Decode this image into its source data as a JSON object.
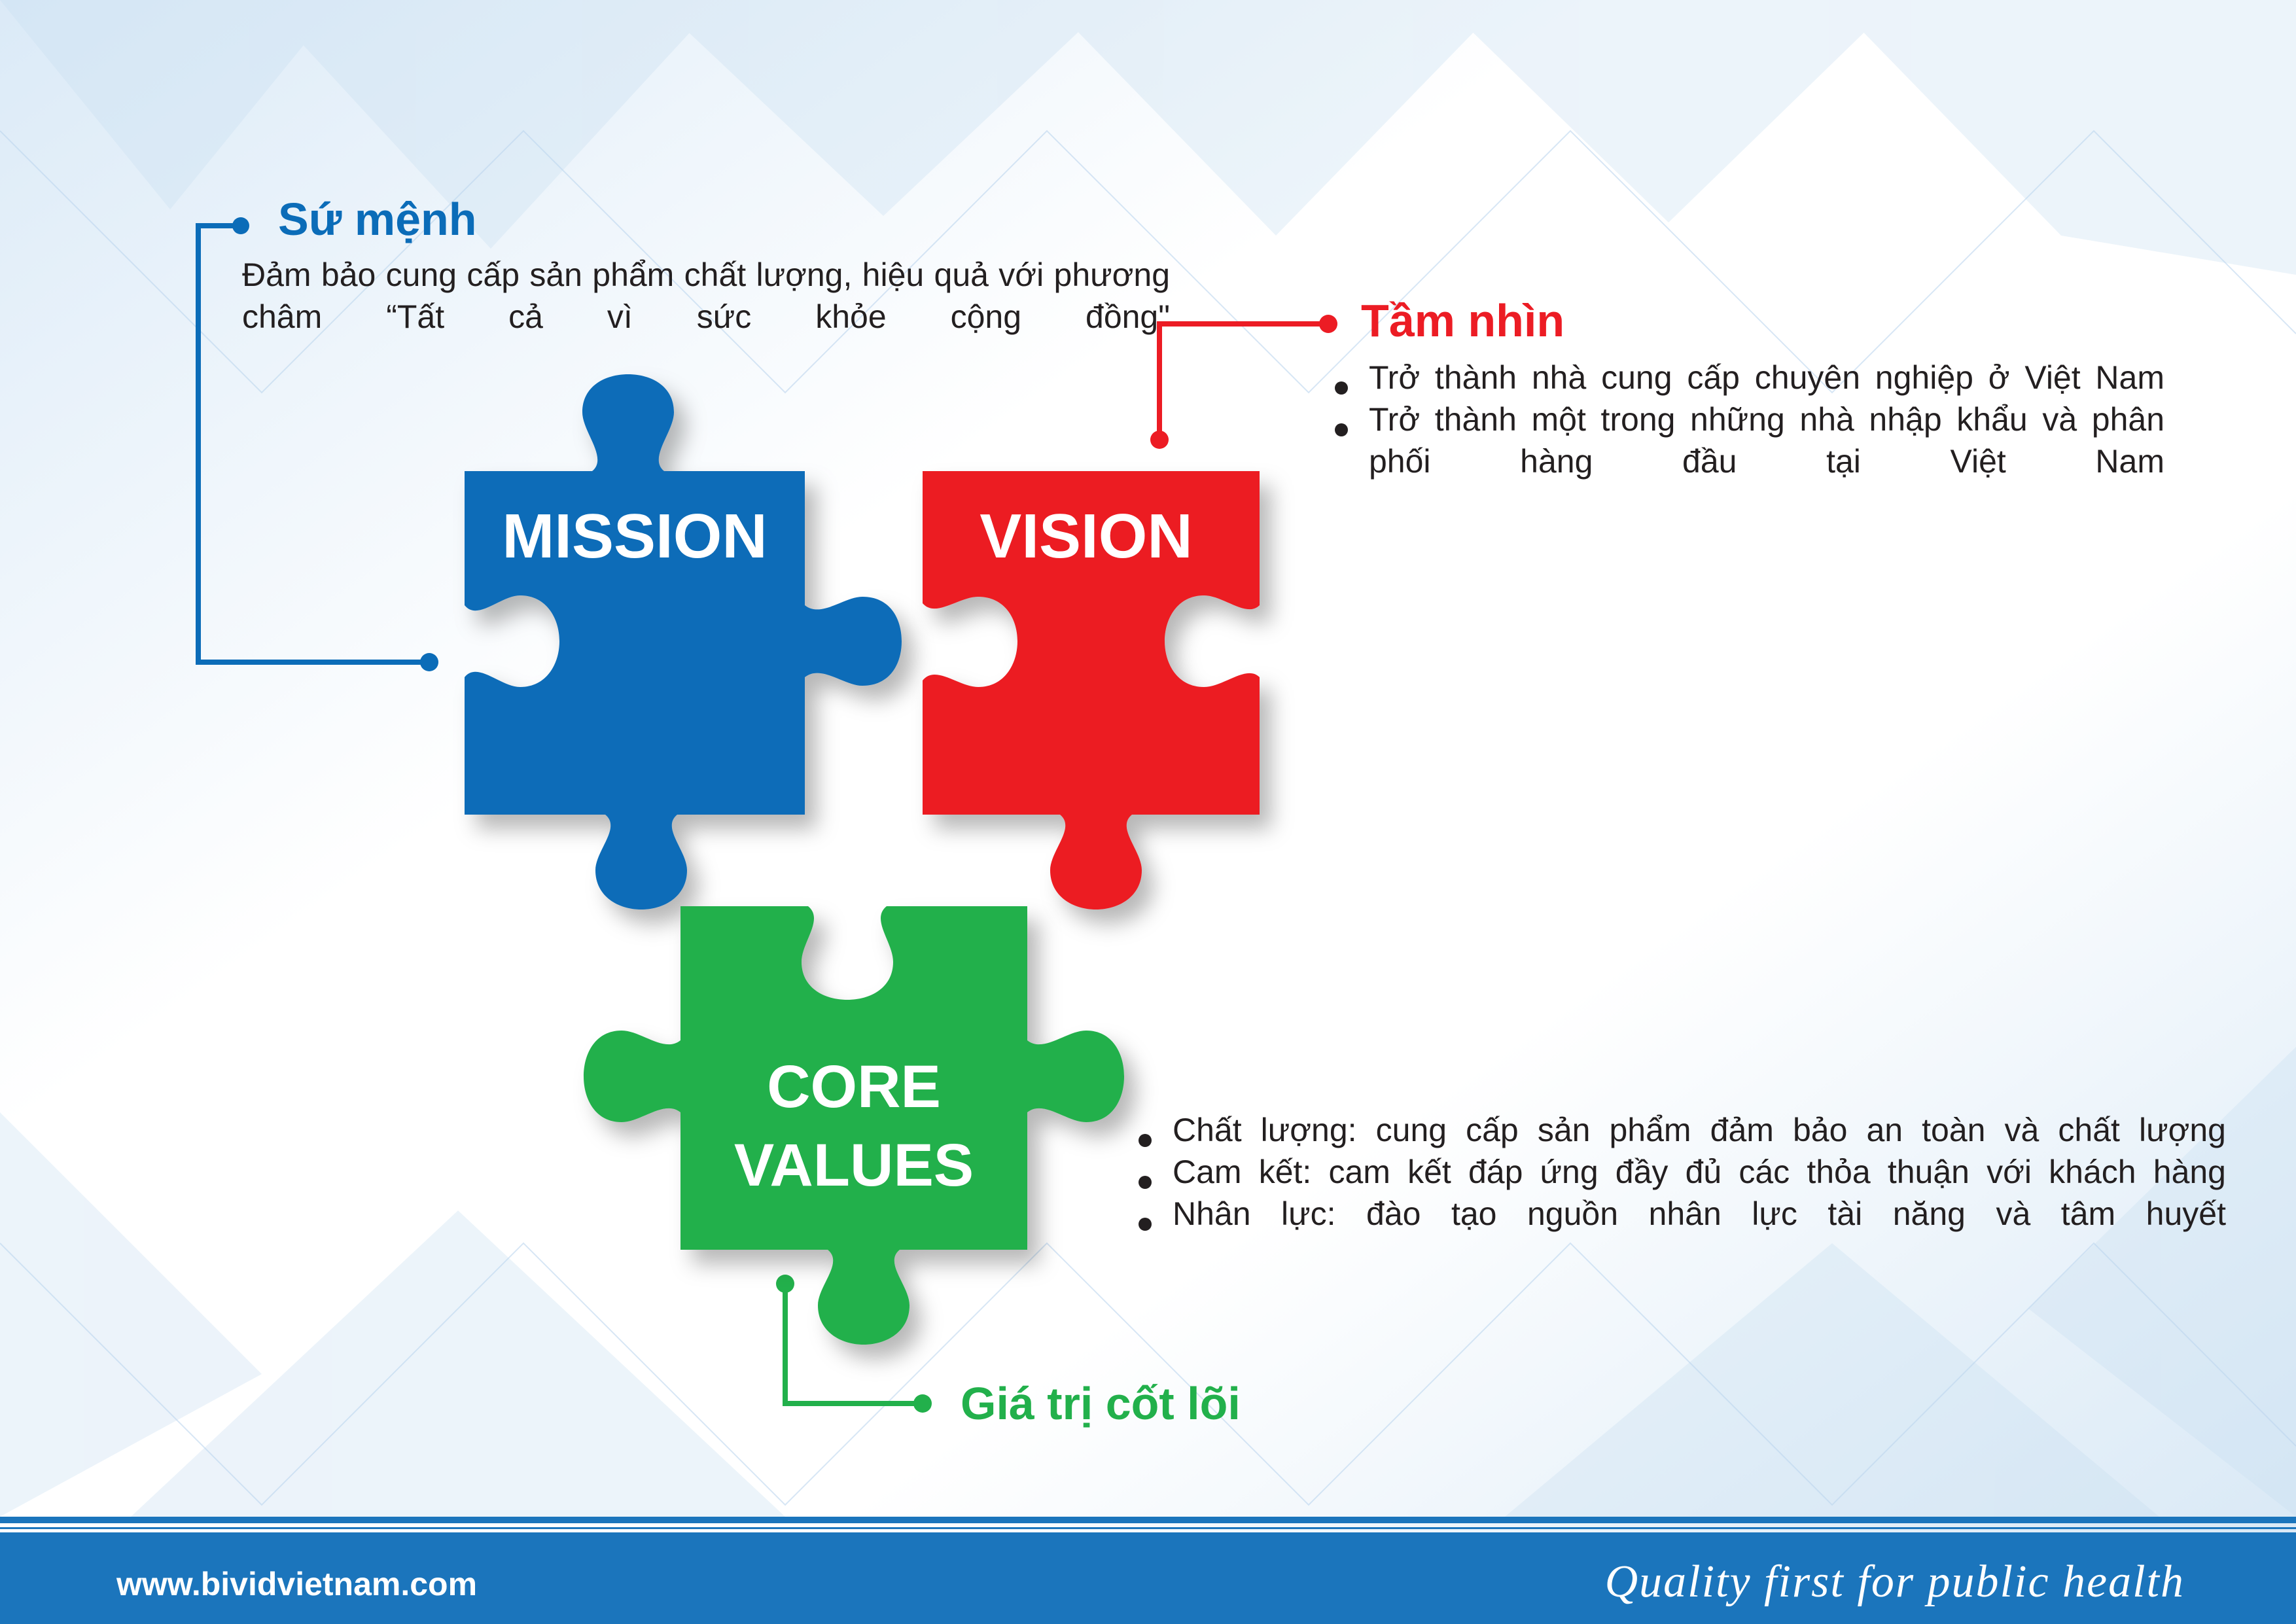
{
  "mission": {
    "heading": "Sứ mệnh",
    "text": "Đảm bảo cung cấp sản phẩm chất lượng, hiệu quả với phương châm “Tất cả vì sức khỏe cộng đồng\"",
    "piece_label": "MISSION",
    "color": "#0b6cb8"
  },
  "vision": {
    "heading": "Tầm nhìn",
    "items": [
      "Trở thành nhà cung cấp chuyên nghiệp ở Việt Nam",
      "Trở thành một trong những nhà nhập khẩu và phân phối hàng đầu tại Việt Nam"
    ],
    "piece_label": "VISION",
    "color": "#ec1c24"
  },
  "core_values": {
    "heading": "Giá trị cốt lõi",
    "items": [
      "Chất lượng: cung cấp sản phẩm đảm bảo an toàn và chất lượng",
      "Cam kết: cam kết đáp ứng đầy đủ các thỏa thuận với khách hàng",
      "Nhân lực: đào tạo nguồn nhân lực tài năng và tâm huyết"
    ],
    "piece_label_line1": "CORE",
    "piece_label_line2": "VALUES",
    "color": "#22b04b"
  },
  "footer": {
    "website": "www.bividvietnam.com",
    "slogan": "Quality first for public health",
    "color": "#1b75bc"
  }
}
